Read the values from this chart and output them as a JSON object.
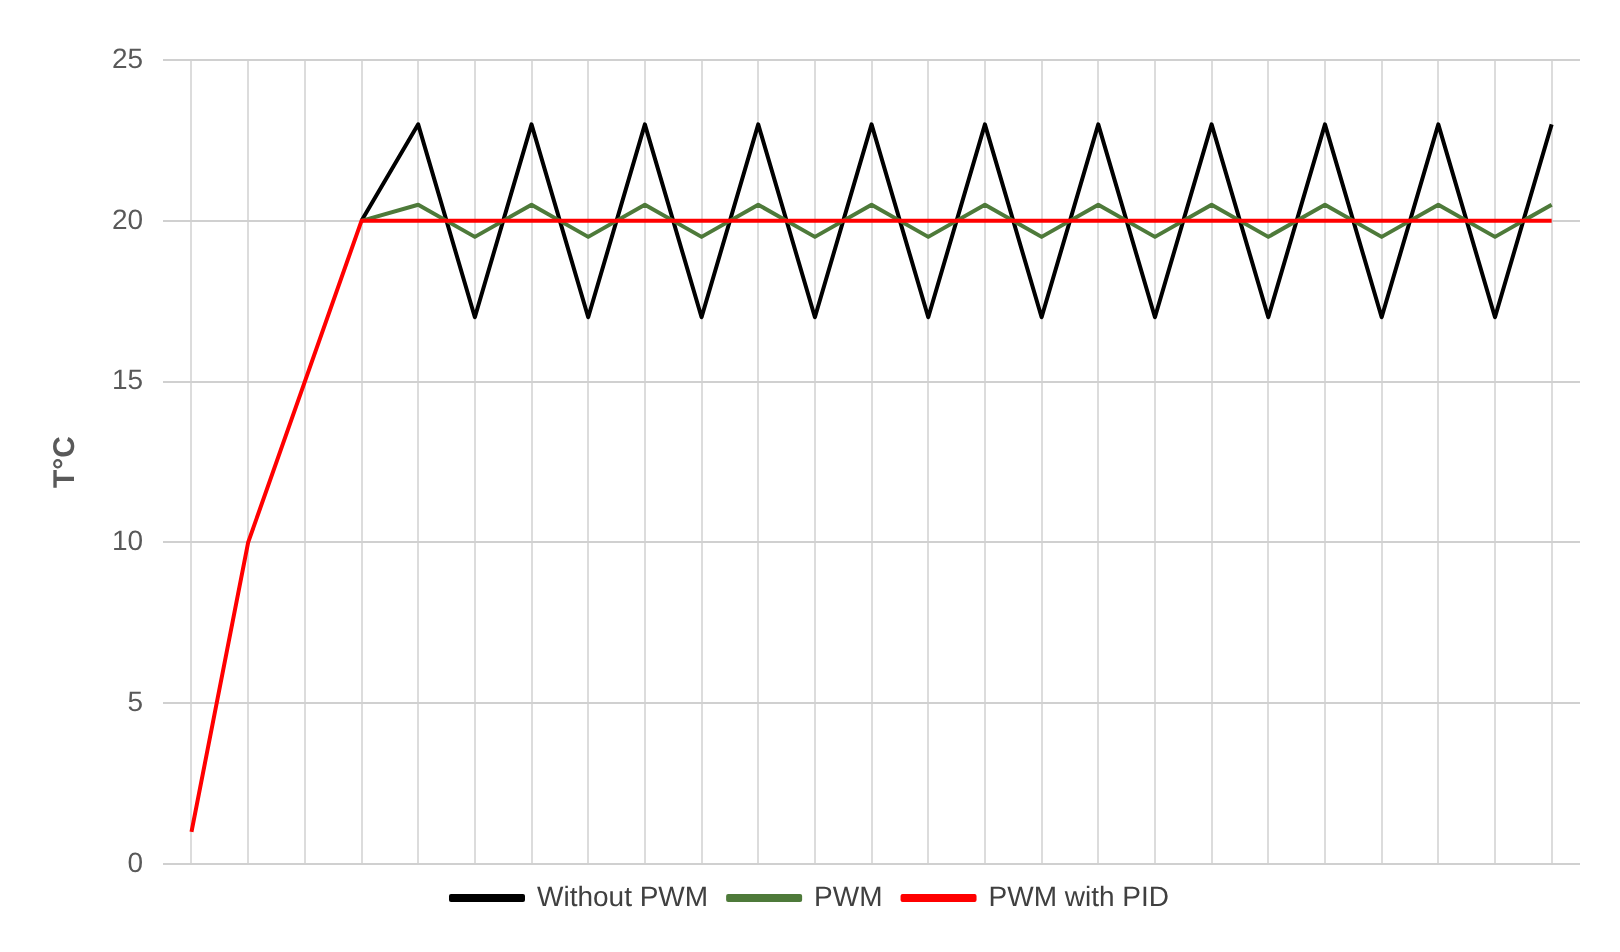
{
  "chart_data": {
    "type": "line",
    "ylabel": "T°C",
    "categories": [
      null,
      null,
      null,
      null,
      null,
      null,
      null,
      null,
      null,
      null,
      null,
      null,
      null,
      null,
      null,
      null,
      null,
      null,
      null,
      null,
      null,
      null,
      null,
      null,
      null
    ],
    "series": [
      {
        "name": "Without PWM",
        "color": "#000000",
        "values": [
          null,
          null,
          null,
          20,
          23,
          17,
          23,
          17,
          23,
          17,
          23,
          17,
          23,
          17,
          23,
          17,
          23,
          17,
          23,
          17,
          23,
          17,
          23,
          17,
          23
        ]
      },
      {
        "name": "PWM",
        "color": "#4e7a3a",
        "values": [
          null,
          null,
          null,
          20,
          20.5,
          19.5,
          20.5,
          19.5,
          20.5,
          19.5,
          20.5,
          19.5,
          20.5,
          19.5,
          20.5,
          19.5,
          20.5,
          19.5,
          20.5,
          19.5,
          20.5,
          19.5,
          20.5,
          19.5,
          20.5
        ]
      },
      {
        "name": "PWM with PID",
        "color": "#ff0000",
        "values": [
          1,
          10,
          15,
          20,
          20,
          20,
          20,
          20,
          20,
          20,
          20,
          20,
          20,
          20,
          20,
          20,
          20,
          20,
          20,
          20,
          20,
          20,
          20,
          20,
          20
        ]
      }
    ],
    "ylim": [
      0,
      25
    ],
    "yticks": [
      0,
      5,
      10,
      15,
      20,
      25
    ],
    "grid": true,
    "legend": "bottom",
    "marker": "none",
    "line_style": "solid"
  }
}
